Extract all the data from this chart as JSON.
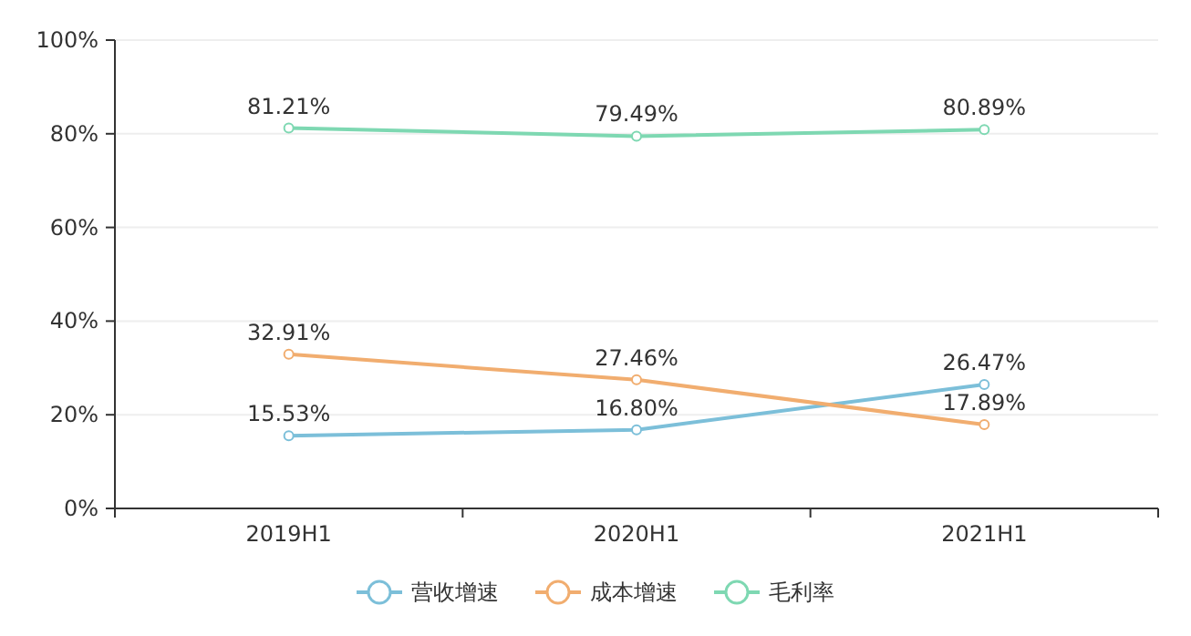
{
  "chart_data": {
    "type": "line",
    "categories": [
      "2019H1",
      "2020H1",
      "2021H1"
    ],
    "series": [
      {
        "name": "营收增速",
        "color": "#7cbfd9",
        "values": [
          15.53,
          16.8,
          26.47
        ],
        "value_labels": [
          "15.53%",
          "16.80%",
          "26.47%"
        ]
      },
      {
        "name": "成本增速",
        "color": "#f1ad6f",
        "values": [
          32.91,
          27.46,
          17.89
        ],
        "value_labels": [
          "32.91%",
          "27.46%",
          "17.89%"
        ]
      },
      {
        "name": "毛利率",
        "color": "#7ed8b2",
        "values": [
          81.21,
          79.49,
          80.89
        ],
        "value_labels": [
          "81.21%",
          "79.49%",
          "80.89%"
        ]
      }
    ],
    "ylim": [
      0,
      100
    ],
    "yticks": [
      {
        "value": 0,
        "label": "0%"
      },
      {
        "value": 20,
        "label": "20%"
      },
      {
        "value": 40,
        "label": "40%"
      },
      {
        "value": 60,
        "label": "60%"
      },
      {
        "value": 80,
        "label": "80%"
      },
      {
        "value": 100,
        "label": "100%"
      }
    ],
    "grid": "y",
    "legend": "bottom",
    "marker": "circle",
    "line_style": "solid"
  }
}
